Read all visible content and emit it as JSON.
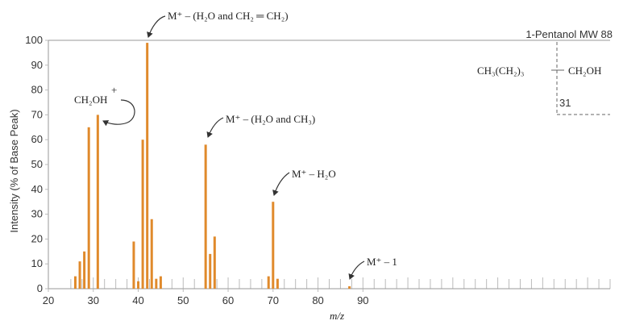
{
  "chart_data": {
    "type": "bar",
    "title": "1-Pentanol MW 88",
    "xlabel": "m/z",
    "ylabel": "Intensity (% of Base Peak)",
    "xlim": [
      20,
      145
    ],
    "ylim": [
      0,
      100
    ],
    "x_ticks": [
      20,
      30,
      40,
      50,
      60,
      70,
      80,
      90
    ],
    "y_ticks": [
      0,
      10,
      20,
      30,
      40,
      50,
      60,
      70,
      80,
      90,
      100
    ],
    "bar_color": "#E08A2C",
    "x": [
      26,
      27,
      28,
      29,
      31,
      39,
      40,
      41,
      42,
      43,
      44,
      45,
      55,
      56,
      57,
      69,
      70,
      71,
      87
    ],
    "values": [
      5,
      11,
      15,
      65,
      70,
      19,
      3,
      60,
      99,
      28,
      4,
      5,
      58,
      14,
      21,
      5,
      35,
      4,
      1
    ],
    "annotations": [
      {
        "text": "CH₂OH",
        "charge": "+",
        "x": 31,
        "y": 70
      },
      {
        "text": "M⁺ – (H₂O and CH₂ ═ CH₂)",
        "x": 42,
        "y": 99
      },
      {
        "text": "M⁺ – (H₂O and CH₃)",
        "x": 55,
        "y": 58
      },
      {
        "text": "M⁺ – H₂O",
        "x": 70,
        "y": 35
      },
      {
        "text": "M⁺ – 1",
        "x": 87,
        "y": 1
      }
    ],
    "structure": {
      "left": "CH₃(CH₂)₃",
      "right": "CH₂OH",
      "cleavage_mass": "31"
    }
  }
}
